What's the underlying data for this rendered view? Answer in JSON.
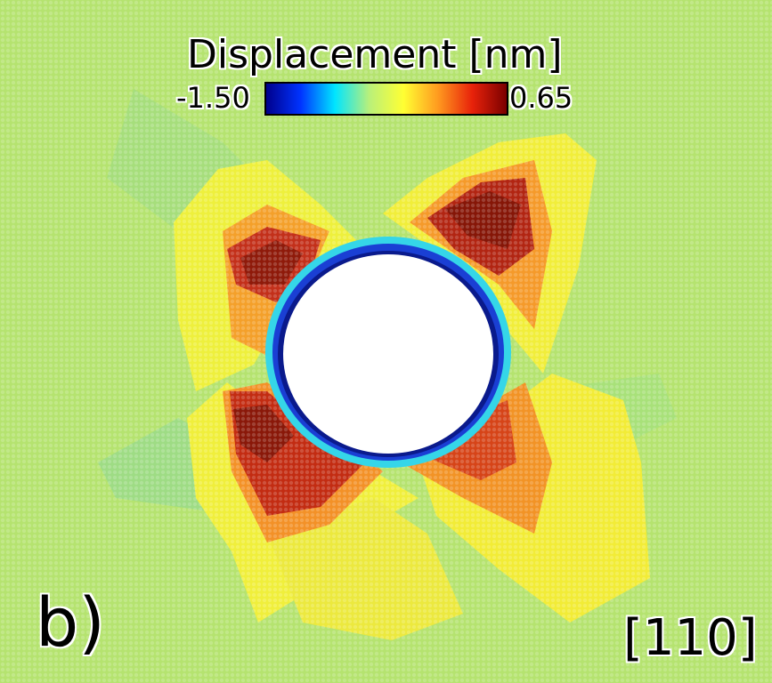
{
  "colorbar": {
    "title": "Displacement [nm]",
    "min_label": "-1.50",
    "max_label": "0.65",
    "colors": [
      "#00008c",
      "#0033ff",
      "#00e5ff",
      "#b9f07a",
      "#ffff33",
      "#ff9a1f",
      "#e8220a",
      "#7a0000"
    ]
  },
  "panel_label": "b)",
  "direction_label": "[110]",
  "palette": {
    "background": "#b5e36f",
    "yellow_lobe": "#f2ef3a",
    "orange": "#f29a28",
    "red": "#c83012",
    "dark_red": "#8f1a0a",
    "void": "#ffffff",
    "blue_ring": "#1a3fd4",
    "cyan": "#35d6e8"
  }
}
